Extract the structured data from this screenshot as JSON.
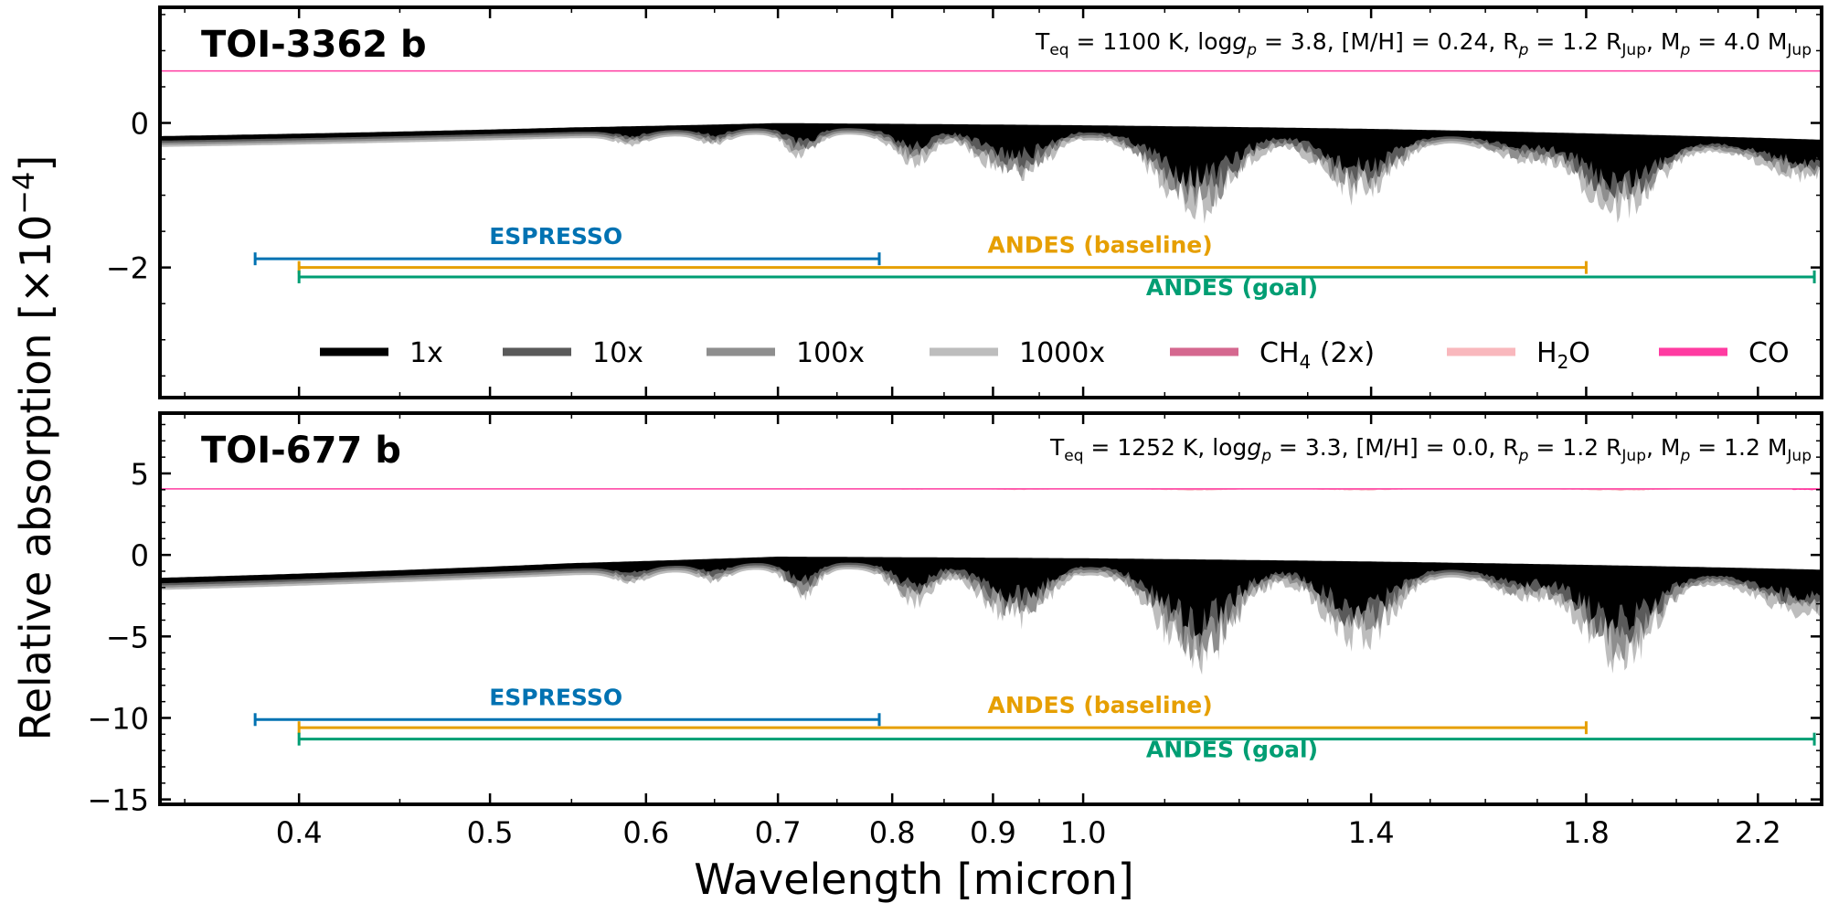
{
  "figure": {
    "xlabel": "Wavelength [micron]",
    "ylabel_main": "Relative absorption [×10",
    "ylabel_exp": "−4",
    "ylabel_close": "]"
  },
  "colors": {
    "1x": "#000000",
    "10x": "#5a5a5a",
    "100x": "#8e8e8e",
    "1000x": "#bdbdbd",
    "ch4": "#d5688f",
    "h2o": "#f9b8bd",
    "co": "#ff3ba1",
    "espresso": "#0072b2",
    "andes_baseline": "#e69f00",
    "andes_goal": "#009e73"
  },
  "chart_data": [
    {
      "type": "area",
      "title": "TOI-3362 b",
      "params": {
        "teq": "1100 K",
        "logg": "3.8",
        "mh": "0.24",
        "rp": "1.2",
        "mp": "4.0"
      },
      "xlabel": "Wavelength [micron]",
      "ylabel": "Relative absorption [×10^-4]",
      "xscale": "log",
      "xlim": [
        0.34,
        2.37
      ],
      "ylim": [
        -3.8,
        1.6
      ],
      "yticks": [
        0,
        -2
      ],
      "ytick_labels": [
        "0",
        "−2"
      ],
      "legend": [
        "1x",
        "10x",
        "100x",
        "1000x",
        "CH4 (2x)",
        "H2O",
        "CO"
      ],
      "legend_position": "lower-center",
      "series": [
        {
          "name": "1x",
          "continuum_points": [
            [
              0.34,
              -0.2
            ],
            [
              0.55,
              -0.08
            ],
            [
              0.7,
              -0.02
            ],
            [
              1.0,
              -0.05
            ],
            [
              1.4,
              -0.1
            ],
            [
              2.37,
              -0.25
            ]
          ],
          "max_depth": 0.9
        },
        {
          "name": "10x",
          "max_depth": 1.05
        },
        {
          "name": "100x",
          "max_depth": 1.2
        },
        {
          "name": "1000x",
          "max_depth": 1.35
        }
      ],
      "reference_level": 0.72,
      "instruments": [
        {
          "name": "ESPRESSO",
          "range": [
            0.38,
            0.788
          ],
          "y": -1.88
        },
        {
          "name": "ANDES (baseline)",
          "range": [
            0.4,
            1.8
          ],
          "y": -2.0
        },
        {
          "name": "ANDES (goal)",
          "range": [
            0.4,
            2.35
          ],
          "y": -2.13
        }
      ]
    },
    {
      "type": "area",
      "title": "TOI-677 b",
      "params": {
        "teq": "1252 K",
        "logg": "3.3",
        "mh": "0.0",
        "rp": "1.2",
        "mp": "1.2"
      },
      "xlabel": "Wavelength [micron]",
      "ylabel": "Relative absorption [×10^-4]",
      "xscale": "log",
      "xlim": [
        0.34,
        2.37
      ],
      "ylim": [
        -15.3,
        8.7
      ],
      "yticks": [
        5,
        0,
        -5,
        -10,
        -15
      ],
      "ytick_labels": [
        "5",
        "0",
        "−5",
        "−10",
        "−15"
      ],
      "series": [
        {
          "name": "1x",
          "continuum_points": [
            [
              0.34,
              -1.5
            ],
            [
              0.55,
              -0.6
            ],
            [
              0.7,
              -0.2
            ],
            [
              1.0,
              -0.3
            ],
            [
              1.4,
              -0.5
            ],
            [
              2.37,
              -1.0
            ]
          ],
          "max_depth": 4.8
        },
        {
          "name": "10x",
          "max_depth": 5.6
        },
        {
          "name": "100x",
          "max_depth": 6.4
        },
        {
          "name": "1000x",
          "max_depth": 7.2
        }
      ],
      "reference_level": 4.05,
      "instruments": [
        {
          "name": "ESPRESSO",
          "range": [
            0.38,
            0.788
          ],
          "y": -10.1
        },
        {
          "name": "ANDES (baseline)",
          "range": [
            0.4,
            1.8
          ],
          "y": -10.6
        },
        {
          "name": "ANDES (goal)",
          "range": [
            0.4,
            2.35
          ],
          "y": -11.3
        }
      ]
    }
  ],
  "xticks": [
    0.4,
    0.5,
    0.6,
    0.7,
    0.8,
    0.9,
    1.0,
    1.4,
    1.8,
    2.2
  ],
  "xtick_labels": [
    "0.4",
    "0.5",
    "0.6",
    "0.7",
    "0.8",
    "0.9",
    "1.0",
    "1.4",
    "1.8",
    "2.2"
  ],
  "legend": {
    "1x": "1x",
    "10x": "10x",
    "100x": "100x",
    "1000x": "1000x",
    "ch4_main": "CH",
    "ch4_sub": "4",
    "ch4_tail": " (2x)",
    "h2o_main": "H",
    "h2o_sub": "2",
    "h2o_tail": "O",
    "co": "CO"
  }
}
